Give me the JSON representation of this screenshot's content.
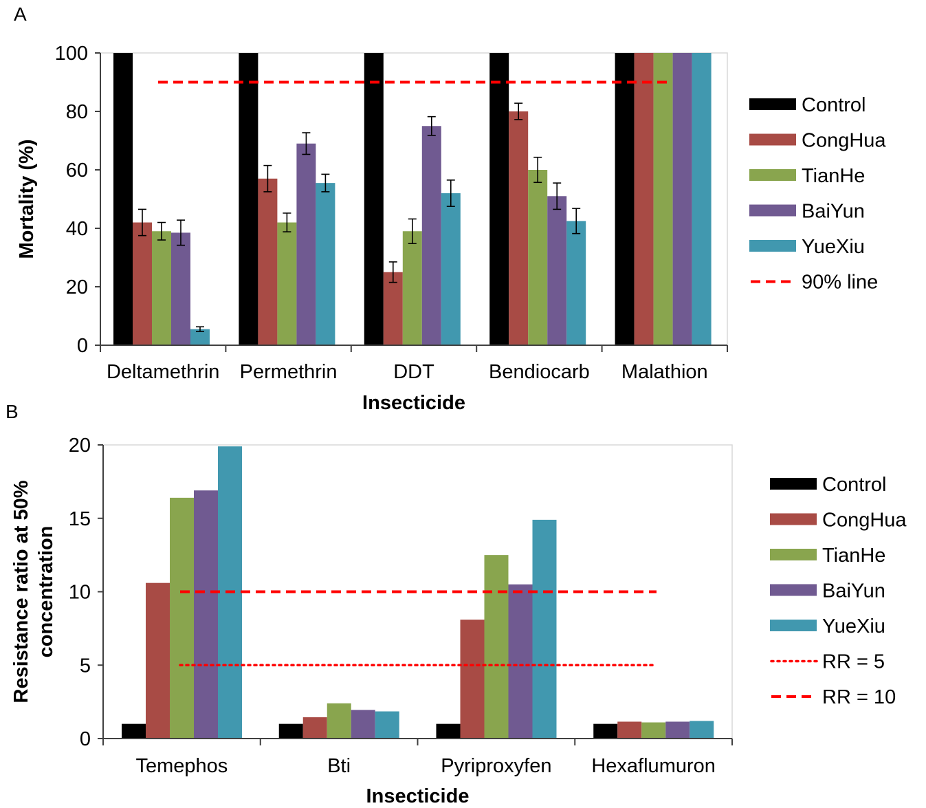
{
  "chart_data": [
    {
      "panel_label": "A",
      "type": "bar",
      "xlabel": "Insecticide",
      "ylabel": "Mortality (%)",
      "ylim": [
        0,
        100
      ],
      "yticks": [
        0,
        20,
        40,
        60,
        80,
        100
      ],
      "categories": [
        "Deltamethrin",
        "Permethrin",
        "DDT",
        "Bendiocarb",
        "Malathion"
      ],
      "series": [
        {
          "name": "Control",
          "color": "#000000",
          "values": [
            100,
            100,
            100,
            100,
            100
          ],
          "errors": [
            0,
            0,
            0,
            0,
            0
          ]
        },
        {
          "name": "CongHua",
          "color": "#A84B45",
          "values": [
            42,
            57,
            25,
            80,
            100
          ],
          "errors": [
            4.5,
            4.5,
            3.5,
            2.8,
            0
          ]
        },
        {
          "name": "TianHe",
          "color": "#89A54E",
          "values": [
            39,
            42,
            39,
            60,
            100
          ],
          "errors": [
            3,
            3.2,
            4.2,
            4.3,
            0
          ]
        },
        {
          "name": "BaiYun",
          "color": "#705A91",
          "values": [
            38.5,
            69,
            75,
            51,
            100
          ],
          "errors": [
            4.3,
            3.7,
            3.2,
            4.5,
            0
          ]
        },
        {
          "name": "YueXiu",
          "color": "#4198AF",
          "values": [
            5.5,
            55.5,
            52,
            42.5,
            100
          ],
          "errors": [
            0.8,
            3,
            4.5,
            4.3,
            0
          ]
        }
      ],
      "reference_lines": [
        {
          "name": "90% line",
          "value": 90,
          "style": "dashed",
          "color": "#FF0000"
        }
      ],
      "legend_placement": "right",
      "grid": false
    },
    {
      "panel_label": "B",
      "type": "bar",
      "xlabel": "Insecticide",
      "ylabel_lines": [
        "Resistance ratio at 50%",
        "concentration"
      ],
      "ylim": [
        0,
        20
      ],
      "yticks": [
        0,
        5,
        10,
        15,
        20
      ],
      "categories": [
        "Temephos",
        "Bti",
        "Pyriproxyfen",
        "Hexaflumuron"
      ],
      "series": [
        {
          "name": "Control",
          "color": "#000000",
          "values": [
            1,
            1,
            1,
            1
          ]
        },
        {
          "name": "CongHua",
          "color": "#A84B45",
          "values": [
            10.6,
            1.45,
            8.1,
            1.15
          ]
        },
        {
          "name": "TianHe",
          "color": "#89A54E",
          "values": [
            16.4,
            2.4,
            12.5,
            1.1
          ]
        },
        {
          "name": "BaiYun",
          "color": "#705A91",
          "values": [
            16.9,
            1.95,
            10.5,
            1.15
          ]
        },
        {
          "name": "YueXiu",
          "color": "#4198AF",
          "values": [
            19.9,
            1.85,
            14.9,
            1.2
          ]
        }
      ],
      "reference_lines": [
        {
          "name": "RR = 5",
          "value": 5,
          "style": "dotted",
          "color": "#FF0000"
        },
        {
          "name": "RR = 10",
          "value": 10,
          "style": "dashed",
          "color": "#FF0000"
        }
      ],
      "legend_placement": "right",
      "grid": false
    }
  ]
}
